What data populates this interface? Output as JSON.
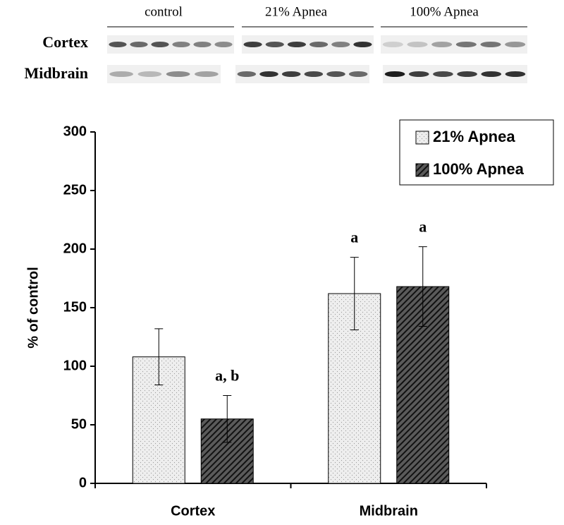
{
  "blot": {
    "groups": [
      "control",
      "21% Apnea",
      "100% Apnea"
    ],
    "rows": [
      "Cortex",
      "Midbrain"
    ]
  },
  "chart_data": {
    "type": "bar",
    "y_label": "% of control",
    "categories": [
      "Cortex",
      "Midbrain"
    ],
    "series": [
      {
        "name": "21% Apnea",
        "color": "#eeeeee",
        "pattern": "dots",
        "values": [
          108,
          162
        ],
        "errors": [
          24,
          31
        ]
      },
      {
        "name": "100% Apnea",
        "color": "#5a5a5a",
        "pattern": "diagonal",
        "values": [
          55,
          168
        ],
        "errors": [
          20,
          34
        ]
      }
    ],
    "annotations": [
      {
        "text": "a, b",
        "series": 1,
        "category": 0
      },
      {
        "text": "a",
        "series": 0,
        "category": 1
      },
      {
        "text": "a",
        "series": 1,
        "category": 1
      }
    ],
    "ylim": [
      0,
      300
    ],
    "yticks": [
      0,
      50,
      100,
      150,
      200,
      250,
      300
    ],
    "grid": false,
    "legend": "top-right"
  }
}
